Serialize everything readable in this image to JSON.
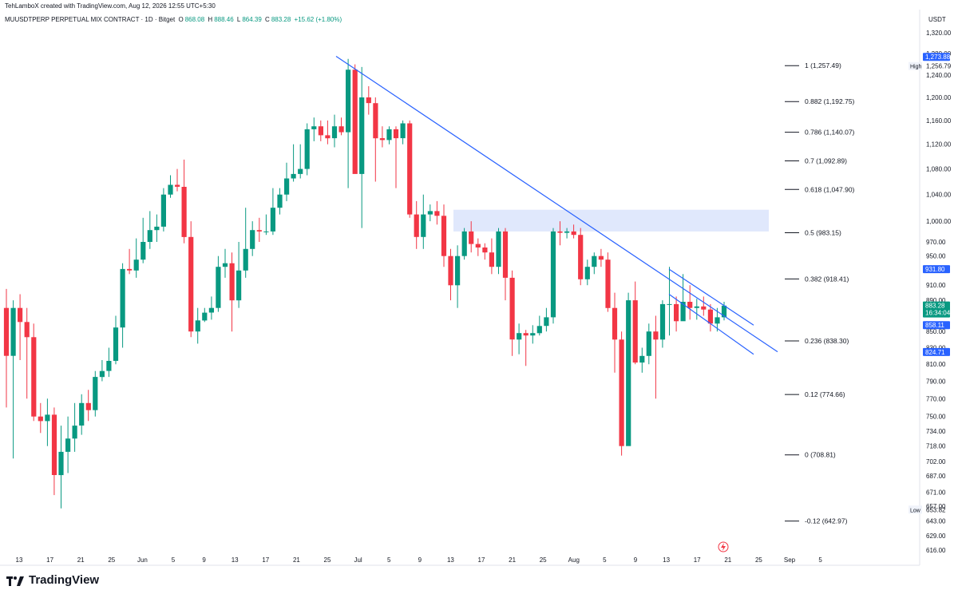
{
  "header": {
    "credit": "TehLamboX created with TradingView.com, Aug 12, 2026 12:55 UTC+5:30",
    "symbol": "MUUSDTPERP PERPETUAL MIX CONTRACT · 1D · Bitget",
    "ohlc": {
      "o_label": "O",
      "o": "868.08",
      "h_label": "H",
      "h": "888.46",
      "l_label": "L",
      "l": "864.39",
      "c_label": "C",
      "c": "883.28",
      "change": "+15.62 (+1.80%)"
    }
  },
  "branding": {
    "name": "TradingView"
  },
  "colors": {
    "up": "#089981",
    "down": "#f23645",
    "trendline": "#2962ff",
    "zone": "#dde6fc",
    "fib": "#131722",
    "grid": "#ffffff",
    "price_tag_current": "#089981",
    "price_tag_blue": "#2962ff"
  },
  "chart_data": {
    "type": "candlestick",
    "y_unit": "USDT",
    "y_scale": "log",
    "ylim": [
      612,
      1330
    ],
    "y_ticks": [
      "1,320.00",
      "1,280.00",
      "1,240.00",
      "1,200.00",
      "1,160.00",
      "1,120.00",
      "1,080.00",
      "1,040.00",
      "1,000.00",
      "970.00",
      "950.00",
      "910.00",
      "890.00",
      "850.00",
      "830.00",
      "810.00",
      "790.00",
      "770.00",
      "750.00",
      "734.00",
      "718.00",
      "702.00",
      "687.00",
      "671.00",
      "657.00",
      "643.00",
      "629.00",
      "616.00"
    ],
    "x_ticks": [
      "13",
      "17",
      "21",
      "25",
      "Jun",
      "5",
      "9",
      "13",
      "17",
      "21",
      "25",
      "Jul",
      "5",
      "9",
      "13",
      "17",
      "21",
      "25",
      "Aug",
      "5",
      "9",
      "13",
      "17",
      "21",
      "25",
      "Sep",
      "5"
    ],
    "candles": [
      [
        880,
        820,
        905,
        760
      ],
      [
        820,
        880,
        890,
        705
      ],
      [
        880,
        862,
        898,
        815
      ],
      [
        862,
        843,
        880,
        770
      ],
      [
        843,
        750,
        860,
        745
      ],
      [
        750,
        745,
        765,
        732
      ],
      [
        745,
        752,
        770,
        718
      ],
      [
        752,
        688,
        760,
        668
      ],
      [
        688,
        712,
        740,
        655
      ],
      [
        712,
        726,
        750,
        690
      ],
      [
        726,
        740,
        765,
        712
      ],
      [
        740,
        765,
        775,
        730
      ],
      [
        765,
        757,
        780,
        745
      ],
      [
        757,
        795,
        802,
        750
      ],
      [
        795,
        802,
        815,
        790
      ],
      [
        802,
        814,
        830,
        795
      ],
      [
        814,
        855,
        870,
        810
      ],
      [
        855,
        932,
        940,
        830
      ],
      [
        932,
        930,
        960,
        925
      ],
      [
        930,
        945,
        975,
        920
      ],
      [
        945,
        970,
        1005,
        940
      ],
      [
        970,
        987,
        1015,
        960
      ],
      [
        987,
        992,
        1010,
        970
      ],
      [
        992,
        1040,
        1050,
        985
      ],
      [
        1040,
        1055,
        1070,
        1035
      ],
      [
        1055,
        1052,
        1080,
        1045
      ],
      [
        1052,
        977,
        1095,
        968
      ],
      [
        977,
        850,
        1000,
        843
      ],
      [
        850,
        864,
        880,
        835
      ],
      [
        864,
        874,
        880,
        862
      ],
      [
        874,
        880,
        895,
        865
      ],
      [
        880,
        935,
        950,
        875
      ],
      [
        935,
        940,
        960,
        920
      ],
      [
        940,
        890,
        955,
        850
      ],
      [
        890,
        930,
        970,
        880
      ],
      [
        930,
        960,
        1020,
        920
      ],
      [
        960,
        987,
        1000,
        950
      ],
      [
        987,
        985,
        1005,
        970
      ],
      [
        985,
        985,
        1010,
        980
      ],
      [
        985,
        1020,
        1050,
        980
      ],
      [
        1020,
        1040,
        1050,
        1010
      ],
      [
        1040,
        1065,
        1090,
        1030
      ],
      [
        1065,
        1072,
        1120,
        1060
      ],
      [
        1072,
        1080,
        1120,
        1065
      ],
      [
        1080,
        1145,
        1155,
        1070
      ],
      [
        1145,
        1150,
        1165,
        1125
      ],
      [
        1150,
        1135,
        1160,
        1125
      ],
      [
        1135,
        1130,
        1160,
        1120
      ],
      [
        1130,
        1150,
        1170,
        1115
      ],
      [
        1150,
        1140,
        1165,
        1135
      ],
      [
        1140,
        1250,
        1270,
        1050
      ],
      [
        1250,
        1072,
        1260,
        1090
      ],
      [
        1072,
        1200,
        1255,
        990
      ],
      [
        1200,
        1190,
        1220,
        1170
      ],
      [
        1190,
        1130,
        1200,
        1060
      ],
      [
        1130,
        1127,
        1150,
        1115
      ],
      [
        1127,
        1145,
        1150,
        1120
      ],
      [
        1145,
        1130,
        1150,
        1050
      ],
      [
        1130,
        1155,
        1160,
        1120
      ],
      [
        1155,
        1010,
        1160,
        1005
      ],
      [
        1010,
        977,
        1030,
        960
      ],
      [
        977,
        1010,
        1040,
        960
      ],
      [
        1010,
        1015,
        1025,
        1000
      ],
      [
        1015,
        1008,
        1030,
        995
      ],
      [
        1008,
        950,
        1025,
        935
      ],
      [
        950,
        910,
        960,
        890
      ],
      [
        910,
        950,
        965,
        880
      ],
      [
        950,
        985,
        990,
        945
      ],
      [
        985,
        967,
        1000,
        955
      ],
      [
        967,
        962,
        975,
        950
      ],
      [
        962,
        955,
        968,
        945
      ],
      [
        955,
        935,
        975,
        925
      ],
      [
        935,
        985,
        990,
        925
      ],
      [
        985,
        920,
        990,
        890
      ],
      [
        920,
        840,
        930,
        820
      ],
      [
        840,
        848,
        860,
        822
      ],
      [
        848,
        845,
        852,
        808
      ],
      [
        845,
        848,
        858,
        835
      ],
      [
        848,
        857,
        870,
        845
      ],
      [
        857,
        868,
        880,
        850
      ],
      [
        868,
        985,
        990,
        860
      ],
      [
        985,
        983,
        1000,
        965
      ],
      [
        983,
        985,
        990,
        975
      ],
      [
        985,
        980,
        995,
        975
      ],
      [
        980,
        918,
        990,
        910
      ],
      [
        918,
        935,
        945,
        910
      ],
      [
        935,
        950,
        955,
        925
      ],
      [
        950,
        945,
        960,
        935
      ],
      [
        945,
        880,
        955,
        875
      ],
      [
        880,
        840,
        900,
        800
      ],
      [
        840,
        718,
        850,
        708
      ],
      [
        718,
        890,
        900,
        725
      ],
      [
        890,
        812,
        915,
        810
      ],
      [
        812,
        820,
        830,
        800
      ],
      [
        820,
        850,
        860,
        810
      ],
      [
        850,
        840,
        870,
        770
      ],
      [
        840,
        885,
        890,
        830
      ],
      [
        885,
        885,
        935,
        845
      ],
      [
        885,
        863,
        895,
        850
      ],
      [
        863,
        888,
        925,
        865
      ],
      [
        888,
        880,
        910,
        865
      ],
      [
        880,
        882,
        892,
        865
      ],
      [
        882,
        878,
        895,
        870
      ],
      [
        878,
        860,
        885,
        850
      ],
      [
        860,
        868,
        880,
        850
      ],
      [
        868,
        883,
        888,
        864
      ]
    ],
    "fib_levels": [
      {
        "ratio": "1",
        "price": 1257.49,
        "label": "1 (1,257.49)"
      },
      {
        "ratio": "0.882",
        "price": 1192.75,
        "label": "0.882 (1,192.75)"
      },
      {
        "ratio": "0.786",
        "price": 1140.07,
        "label": "0.786 (1,140.07)"
      },
      {
        "ratio": "0.7",
        "price": 1092.89,
        "label": "0.7 (1,092.89)"
      },
      {
        "ratio": "0.618",
        "price": 1047.9,
        "label": "0.618 (1,047.90)"
      },
      {
        "ratio": "0.5",
        "price": 983.15,
        "label": "0.5 (983.15)"
      },
      {
        "ratio": "0.382",
        "price": 918.41,
        "label": "0.382 (918.41)"
      },
      {
        "ratio": "0.236",
        "price": 838.3,
        "label": "0.236 (838.30)"
      },
      {
        "ratio": "0.12",
        "price": 774.66,
        "label": "0.12 (774.66)"
      },
      {
        "ratio": "0",
        "price": 708.81,
        "label": "0 (708.81)"
      },
      {
        "ratio": "-0.12",
        "price": 642.97,
        "label": "-0.12 (642.97)"
      }
    ],
    "price_tags": [
      {
        "text": "1,273.88",
        "price": 1273.88,
        "color": "#2962ff"
      },
      {
        "text": "931.80",
        "price": 931.8,
        "color": "#2962ff"
      },
      {
        "text": "883.28",
        "price": 883.28,
        "color": "#089981",
        "sub": "16:34:04"
      },
      {
        "text": "858.11",
        "price": 858.11,
        "color": "#2962ff"
      },
      {
        "text": "824.71",
        "price": 824.71,
        "color": "#2962ff"
      }
    ],
    "high_label": {
      "tag": "High",
      "value": "1,256.79",
      "price": 1256.79
    },
    "low_label": {
      "tag": "Low",
      "value": "653.82",
      "price": 653.82
    },
    "zone": {
      "from_price": 985,
      "to_price": 1017
    },
    "trendline_main": {
      "from_price": 1275,
      "to_price": 825
    },
    "channel_upper": {
      "from_price": 931.8,
      "to_price": 858.11
    },
    "channel_lower": {
      "from_price": 898,
      "to_price": 822
    }
  }
}
